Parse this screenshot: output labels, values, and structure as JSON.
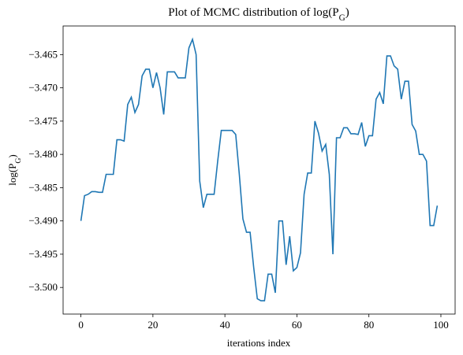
{
  "chart_data": {
    "type": "line",
    "title": "Plot of MCMC distribution of log(P_G)",
    "x_label": "iterations index",
    "y_label": "log(P_G)",
    "x": [
      0,
      1,
      2,
      3,
      4,
      5,
      6,
      7,
      8,
      9,
      10,
      11,
      12,
      13,
      14,
      15,
      16,
      17,
      18,
      19,
      20,
      21,
      22,
      23,
      24,
      25,
      26,
      27,
      28,
      29,
      30,
      31,
      32,
      33,
      34,
      35,
      36,
      37,
      38,
      39,
      40,
      41,
      42,
      43,
      44,
      45,
      46,
      47,
      48,
      49,
      50,
      51,
      52,
      53,
      54,
      55,
      56,
      57,
      58,
      59,
      60,
      61,
      62,
      63,
      64,
      65,
      66,
      67,
      68,
      69,
      70,
      71,
      72,
      73,
      74,
      75,
      76,
      77,
      78,
      79,
      80,
      81,
      82,
      83,
      84,
      85,
      86,
      87,
      88,
      89,
      90,
      91,
      92,
      93,
      94,
      95,
      96,
      97,
      98,
      99
    ],
    "series": [
      {
        "color": "#1f77b4",
        "values": [
          -3.49,
          -3.4862,
          -3.486,
          -3.4856,
          -3.4856,
          -3.4857,
          -3.4857,
          -3.483,
          -3.483,
          -3.483,
          -3.4778,
          -3.4778,
          -3.478,
          -3.4725,
          -3.4714,
          -3.4737,
          -3.4725,
          -3.4682,
          -3.4672,
          -3.4672,
          -3.47,
          -3.4677,
          -3.47,
          -3.474,
          -3.4676,
          -3.4676,
          -3.4676,
          -3.4685,
          -3.4685,
          -3.4685,
          -3.464,
          -3.4627,
          -3.465,
          -3.484,
          -3.488,
          -3.486,
          -3.486,
          -3.486,
          -3.481,
          -3.4764,
          -3.4764,
          -3.4764,
          -3.4764,
          -3.477,
          -3.483,
          -3.4897,
          -3.4917,
          -3.4917,
          -3.497,
          -3.5017,
          -3.502,
          -3.502,
          -3.498,
          -3.498,
          -3.5008,
          -3.49,
          -3.49,
          -3.4966,
          -3.4923,
          -3.4975,
          -3.497,
          -3.4948,
          -3.486,
          -3.4828,
          -3.4828,
          -3.475,
          -3.4768,
          -3.4795,
          -3.4785,
          -3.483,
          -3.495,
          -3.4775,
          -3.4775,
          -3.476,
          -3.476,
          -3.4769,
          -3.4769,
          -3.477,
          -3.4752,
          -3.4788,
          -3.4772,
          -3.4772,
          -3.4717,
          -3.4707,
          -3.4724,
          -3.4652,
          -3.4652,
          -3.4667,
          -3.4672,
          -3.4717,
          -3.469,
          -3.469,
          -3.4755,
          -3.4765,
          -3.48,
          -3.48,
          -3.481,
          -3.4907,
          -3.4907,
          -3.4877
        ]
      }
    ],
    "xlim": [
      -4.95,
      103.95
    ],
    "xticks": [
      0,
      20,
      40,
      60,
      80,
      100
    ],
    "ylim": [
      -3.504,
      -3.4607
    ],
    "yticks": [
      {
        "value": -3.5,
        "label": "−3.500"
      },
      {
        "value": -3.495,
        "label": "−3.495"
      },
      {
        "value": -3.49,
        "label": "−3.490"
      },
      {
        "value": -3.485,
        "label": "−3.485"
      },
      {
        "value": -3.48,
        "label": "−3.480"
      },
      {
        "value": -3.475,
        "label": "−3.475"
      },
      {
        "value": -3.47,
        "label": "−3.470"
      },
      {
        "value": -3.465,
        "label": "−3.465"
      }
    ],
    "grid": false
  }
}
